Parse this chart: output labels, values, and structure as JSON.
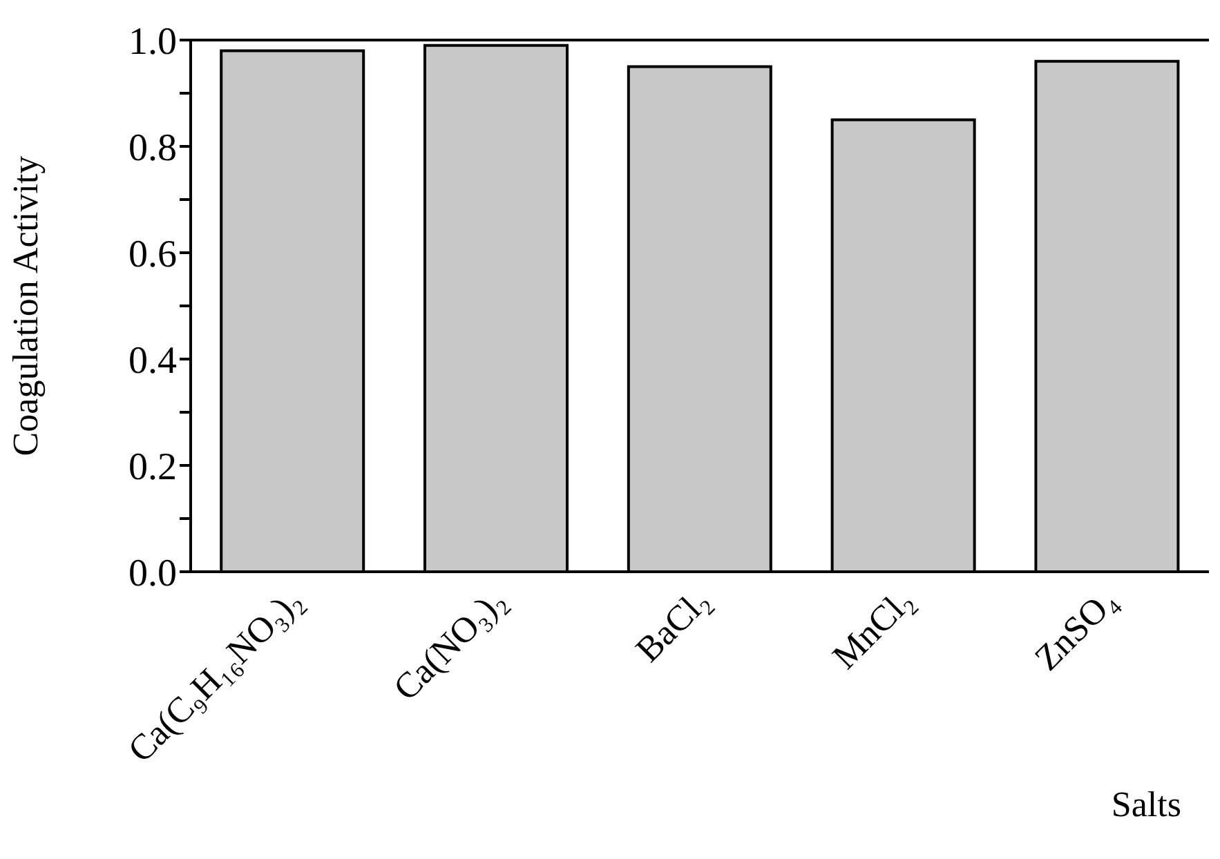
{
  "chart_data": {
    "type": "bar",
    "xlabel": "Salts",
    "ylabel": "Coagulation Activity",
    "categories": [
      "Ca(C₉H₁₆NO₃)₂",
      "Ca(NO₃)₂",
      "BaCl₂",
      "MnCl₂",
      "ZnSO₄"
    ],
    "values": [
      0.98,
      0.99,
      0.95,
      0.85,
      0.96
    ],
    "color": "#c8c8c8",
    "ylim": [
      0,
      1
    ],
    "yticks": [
      {
        "value": 0,
        "label": "0.0"
      },
      {
        "value": 0.1,
        "label": null
      },
      {
        "value": 0.2,
        "label": "0.2"
      },
      {
        "value": 0.3,
        "label": null
      },
      {
        "value": 0.4,
        "label": "0.4"
      },
      {
        "value": 0.5,
        "label": null
      },
      {
        "value": 0.6,
        "label": "0.6"
      },
      {
        "value": 0.7,
        "label": null
      },
      {
        "value": 0.8,
        "label": "0.8"
      },
      {
        "value": 0.9,
        "label": null
      },
      {
        "value": 1,
        "label": "1.0"
      }
    ],
    "grid": false,
    "legend": false
  }
}
